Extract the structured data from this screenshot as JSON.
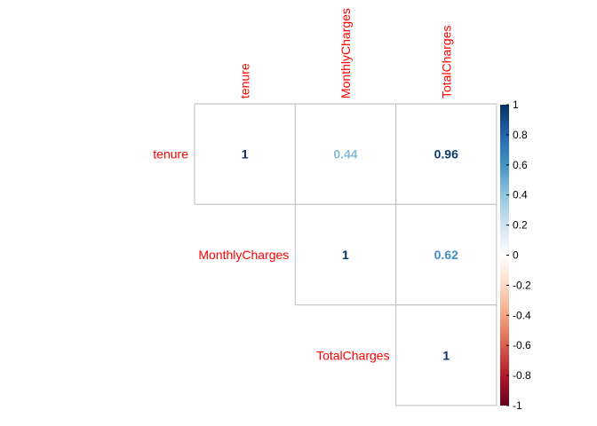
{
  "chart_data": {
    "type": "heatmap",
    "subtype": "correlation-matrix-upper",
    "variables": [
      "tenure",
      "MonthlyCharges",
      "TotalCharges"
    ],
    "cells": [
      {
        "row": "tenure",
        "col": "tenure",
        "value": 1,
        "label": "1"
      },
      {
        "row": "tenure",
        "col": "MonthlyCharges",
        "value": 0.44,
        "label": "0.44"
      },
      {
        "row": "tenure",
        "col": "TotalCharges",
        "value": 0.96,
        "label": "0.96"
      },
      {
        "row": "MonthlyCharges",
        "col": "MonthlyCharges",
        "value": 1,
        "label": "1"
      },
      {
        "row": "MonthlyCharges",
        "col": "TotalCharges",
        "value": 0.62,
        "label": "0.62"
      },
      {
        "row": "TotalCharges",
        "col": "TotalCharges",
        "value": 1,
        "label": "1"
      }
    ],
    "colorbar": {
      "range": [
        -1,
        1
      ],
      "ticks": [
        "1",
        "0.8",
        "0.6",
        "0.4",
        "0.2",
        "0",
        "-0.2",
        "-0.4",
        "-0.6",
        "-0.8",
        "-1"
      ],
      "palette": [
        "#67001F",
        "#B2182B",
        "#D6604D",
        "#F4A582",
        "#FDDBC7",
        "#FFFFFF",
        "#D1E5F0",
        "#92C5DE",
        "#4393C3",
        "#2166AC",
        "#053061"
      ]
    },
    "label_color": "#FF0000",
    "grid_color": "#BEBEBE",
    "legend_position": "right"
  }
}
